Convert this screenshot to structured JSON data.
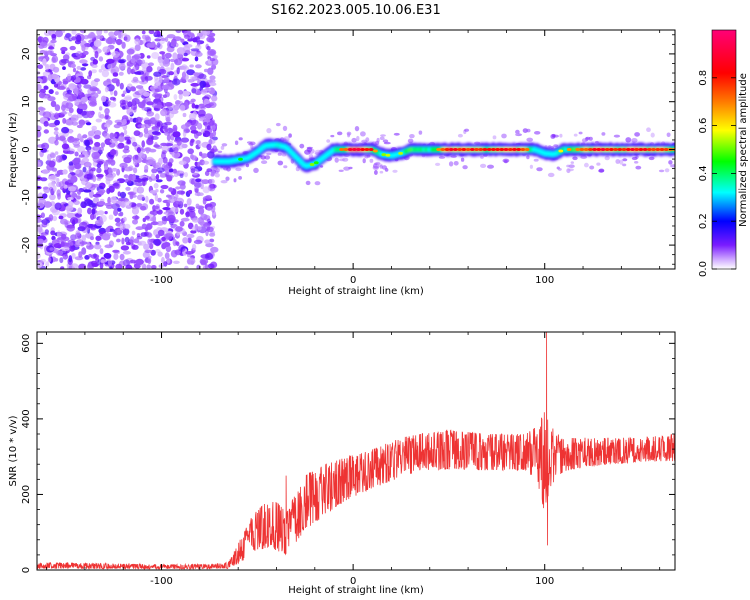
{
  "title": "S162.2023.005.10.06.E31",
  "chart_data": [
    {
      "type": "heatmap",
      "xlabel": "Height of straight line (km)",
      "ylabel": "Frequency (Hz)",
      "xlim": [
        -165,
        168
      ],
      "ylim": [
        -25,
        25
      ],
      "xticks": [
        -100,
        0,
        100
      ],
      "yticks": [
        -20,
        -10,
        0,
        10,
        20
      ],
      "colorbar": {
        "label": "Normalized spectral amplitude",
        "range": [
          0,
          1
        ],
        "ticks": [
          0.0,
          0.2,
          0.4,
          0.6,
          0.8
        ],
        "colors": [
          "#ffffff",
          "#cfa9ff",
          "#7a1cff",
          "#0000ff",
          "#00ffff",
          "#00ff00",
          "#ffff00",
          "#ff7a00",
          "#ff0000",
          "#ff0077"
        ]
      },
      "noise_region_x": [
        -165,
        -72
      ],
      "signal_track": [
        {
          "x": -72,
          "y": -2.5,
          "v": 0.45
        },
        {
          "x": -65,
          "y": -2.5,
          "v": 0.5
        },
        {
          "x": -58,
          "y": -2.0,
          "v": 0.45
        },
        {
          "x": -55,
          "y": -1.8,
          "v": 0.5
        },
        {
          "x": -50,
          "y": -0.5,
          "v": 0.5
        },
        {
          "x": -46,
          "y": 0.8,
          "v": 0.5
        },
        {
          "x": -40,
          "y": 1.0,
          "v": 0.55
        },
        {
          "x": -35,
          "y": 0.5,
          "v": 0.5
        },
        {
          "x": -30,
          "y": -1.5,
          "v": 0.45
        },
        {
          "x": -25,
          "y": -3.5,
          "v": 0.45
        },
        {
          "x": -20,
          "y": -3.0,
          "v": 0.5
        },
        {
          "x": -15,
          "y": -1.5,
          "v": 0.45
        },
        {
          "x": -10,
          "y": 0.0,
          "v": 0.55
        },
        {
          "x": 0,
          "y": 0.0,
          "v": 0.9
        },
        {
          "x": 10,
          "y": 0.0,
          "v": 0.8
        },
        {
          "x": 15,
          "y": -1.0,
          "v": 0.5
        },
        {
          "x": 20,
          "y": -1.3,
          "v": 0.5
        },
        {
          "x": 25,
          "y": -0.8,
          "v": 0.55
        },
        {
          "x": 30,
          "y": 0.0,
          "v": 0.7
        },
        {
          "x": 40,
          "y": 0.0,
          "v": 0.6
        },
        {
          "x": 50,
          "y": 0.0,
          "v": 0.85
        },
        {
          "x": 60,
          "y": 0.0,
          "v": 0.8
        },
        {
          "x": 70,
          "y": 0.0,
          "v": 0.75
        },
        {
          "x": 80,
          "y": 0.0,
          "v": 0.85
        },
        {
          "x": 90,
          "y": 0.0,
          "v": 0.8
        },
        {
          "x": 95,
          "y": 0.0,
          "v": 0.55
        },
        {
          "x": 100,
          "y": -0.8,
          "v": 0.5
        },
        {
          "x": 105,
          "y": -1.0,
          "v": 0.5
        },
        {
          "x": 110,
          "y": 0.0,
          "v": 0.6
        },
        {
          "x": 120,
          "y": 0.0,
          "v": 0.75
        },
        {
          "x": 130,
          "y": 0.0,
          "v": 0.85
        },
        {
          "x": 140,
          "y": 0.0,
          "v": 0.8
        },
        {
          "x": 150,
          "y": 0.0,
          "v": 0.85
        },
        {
          "x": 160,
          "y": 0.0,
          "v": 0.8
        },
        {
          "x": 168,
          "y": 0.0,
          "v": 0.75
        }
      ]
    },
    {
      "type": "line",
      "xlabel": "Height of straight line (km)",
      "ylabel": "SNR (10 * v/v)",
      "xlim": [
        -165,
        168
      ],
      "ylim": [
        0,
        630
      ],
      "xticks": [
        -100,
        0,
        100
      ],
      "yticks": [
        0,
        200,
        400,
        600
      ],
      "color": "#ee3333",
      "series_envelope": [
        {
          "x": -165,
          "low": 0,
          "high": 20
        },
        {
          "x": -140,
          "low": 0,
          "high": 18
        },
        {
          "x": -100,
          "low": 0,
          "high": 15
        },
        {
          "x": -75,
          "low": 0,
          "high": 15
        },
        {
          "x": -65,
          "low": 0,
          "high": 20
        },
        {
          "x": -58,
          "low": 5,
          "high": 90
        },
        {
          "x": -52,
          "low": 20,
          "high": 150
        },
        {
          "x": -45,
          "low": 30,
          "high": 180
        },
        {
          "x": -40,
          "low": 20,
          "high": 180
        },
        {
          "x": -35,
          "low": 10,
          "high": 160
        },
        {
          "x": -30,
          "low": 40,
          "high": 200
        },
        {
          "x": -25,
          "low": 70,
          "high": 250
        },
        {
          "x": -15,
          "low": 110,
          "high": 280
        },
        {
          "x": -5,
          "low": 150,
          "high": 300
        },
        {
          "x": 5,
          "low": 180,
          "high": 310
        },
        {
          "x": 15,
          "low": 200,
          "high": 330
        },
        {
          "x": 25,
          "low": 220,
          "high": 350
        },
        {
          "x": 35,
          "low": 240,
          "high": 360
        },
        {
          "x": 50,
          "low": 240,
          "high": 370
        },
        {
          "x": 70,
          "low": 240,
          "high": 360
        },
        {
          "x": 90,
          "low": 240,
          "high": 360
        },
        {
          "x": 96,
          "low": 200,
          "high": 380
        },
        {
          "x": 100,
          "low": 80,
          "high": 420
        },
        {
          "x": 103,
          "low": 180,
          "high": 380
        },
        {
          "x": 110,
          "low": 240,
          "high": 350
        },
        {
          "x": 130,
          "low": 260,
          "high": 350
        },
        {
          "x": 150,
          "low": 270,
          "high": 350
        },
        {
          "x": 168,
          "low": 270,
          "high": 360
        }
      ],
      "peaks": [
        {
          "x": -35,
          "y": 250
        },
        {
          "x": 101,
          "y": 630
        },
        {
          "x": 101.5,
          "y": 65
        }
      ]
    }
  ]
}
